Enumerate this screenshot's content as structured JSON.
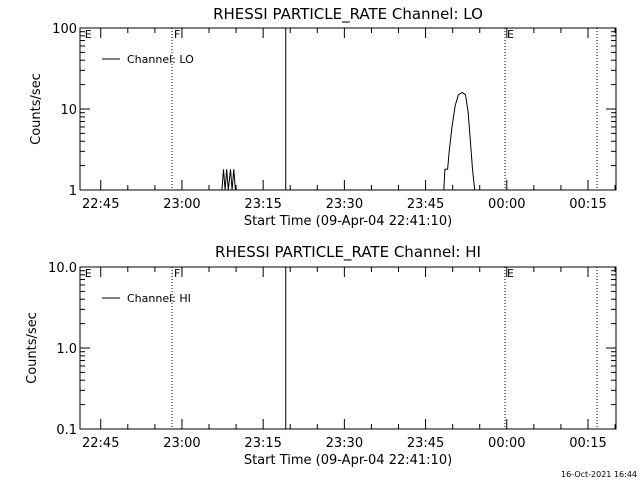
{
  "chart_data": [
    {
      "type": "line",
      "title": "RHESSI PARTICLE_RATE Channel: LO",
      "xlabel": "Start Time (09-Apr-04 22:41:10)",
      "ylabel": "Counts/sec",
      "yscale": "log",
      "ylim": [
        1,
        100
      ],
      "ytick_values": [
        1,
        10,
        100
      ],
      "ytick_labels": [
        "1",
        "10",
        "100"
      ],
      "xlim_minutes": [
        0,
        99
      ],
      "xticks": [
        {
          "label": "22:45",
          "min": 3.83
        },
        {
          "label": "23:00",
          "min": 18.83
        },
        {
          "label": "23:15",
          "min": 33.83
        },
        {
          "label": "23:30",
          "min": 48.83
        },
        {
          "label": "23:45",
          "min": 63.83
        },
        {
          "label": "00:00",
          "min": 78.83
        },
        {
          "label": "00:15",
          "min": 93.83
        }
      ],
      "legend": {
        "label": "Channel: LO",
        "placement": "top-left"
      },
      "markers": [
        {
          "min": 0.5,
          "style": "none",
          "label": "E"
        },
        {
          "min": 17.0,
          "style": "dotted",
          "label": "F"
        },
        {
          "min": 38.0,
          "style": "solid",
          "label": ""
        },
        {
          "min": 78.5,
          "style": "dotted",
          "label": "E"
        },
        {
          "min": 95.5,
          "style": "dotted",
          "label": ""
        }
      ],
      "series": [
        {
          "name": "Channel: LO",
          "segments": [
            [
              {
                "x": 26.2,
                "y": 1
              },
              {
                "x": 26.5,
                "y": 1.8
              },
              {
                "x": 26.8,
                "y": 1
              },
              {
                "x": 27.1,
                "y": 1.8
              },
              {
                "x": 27.4,
                "y": 1
              },
              {
                "x": 27.8,
                "y": 1.8
              },
              {
                "x": 28.1,
                "y": 1
              },
              {
                "x": 28.4,
                "y": 1.8
              },
              {
                "x": 28.7,
                "y": 1
              }
            ],
            [
              {
                "x": 67.2,
                "y": 1
              },
              {
                "x": 67.4,
                "y": 1.8
              },
              {
                "x": 67.9,
                "y": 1.8
              },
              {
                "x": 68.2,
                "y": 3
              },
              {
                "x": 68.7,
                "y": 6
              },
              {
                "x": 69.3,
                "y": 11
              },
              {
                "x": 69.9,
                "y": 15
              },
              {
                "x": 70.6,
                "y": 16
              },
              {
                "x": 71.2,
                "y": 15
              },
              {
                "x": 71.7,
                "y": 9
              },
              {
                "x": 72.1,
                "y": 4
              },
              {
                "x": 72.5,
                "y": 1.8
              },
              {
                "x": 72.9,
                "y": 1
              }
            ]
          ]
        }
      ]
    },
    {
      "type": "line",
      "title": "RHESSI PARTICLE_RATE Channel: HI",
      "xlabel": "Start Time (09-Apr-04 22:41:10)",
      "ylabel": "Counts/sec",
      "yscale": "log",
      "ylim": [
        0.1,
        10
      ],
      "ytick_values": [
        0.1,
        1,
        10
      ],
      "ytick_labels": [
        "0.1",
        "1.0",
        "10.0"
      ],
      "xlim_minutes": [
        0,
        99
      ],
      "xticks": [
        {
          "label": "22:45",
          "min": 3.83
        },
        {
          "label": "23:00",
          "min": 18.83
        },
        {
          "label": "23:15",
          "min": 33.83
        },
        {
          "label": "23:30",
          "min": 48.83
        },
        {
          "label": "23:45",
          "min": 63.83
        },
        {
          "label": "00:00",
          "min": 78.83
        },
        {
          "label": "00:15",
          "min": 93.83
        }
      ],
      "legend": {
        "label": "Channel: HI",
        "placement": "top-left"
      },
      "markers": [
        {
          "min": 0.5,
          "style": "none",
          "label": "E"
        },
        {
          "min": 17.0,
          "style": "dotted",
          "label": "F"
        },
        {
          "min": 38.0,
          "style": "solid",
          "label": ""
        },
        {
          "min": 78.5,
          "style": "dotted",
          "label": "E"
        },
        {
          "min": 95.5,
          "style": "dotted",
          "label": ""
        }
      ],
      "series": [
        {
          "name": "Channel: HI",
          "segments": []
        }
      ]
    }
  ],
  "timestamp": "16-Oct-2021 16:44"
}
